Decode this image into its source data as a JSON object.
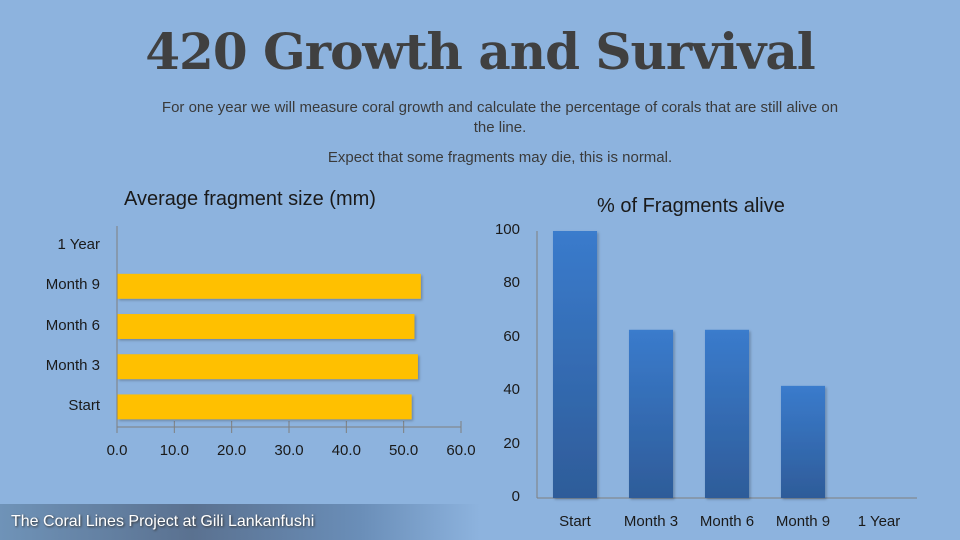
{
  "slide": {
    "title": "420 Growth and Survival",
    "subtitle_line1": "For one year we will measure coral growth and calculate the percentage of corals that are still alive on the line.",
    "subtitle_line2": "Expect that some fragments may die, this is normal.",
    "footer": "The Coral Lines Project at Gili Lankanfushi"
  },
  "chart_data": [
    {
      "type": "bar",
      "orientation": "horizontal",
      "title": "Average fragment size (mm)",
      "categories": [
        "Start",
        "Month 3",
        "Month 6",
        "Month 9",
        "1 Year"
      ],
      "values": [
        51.3,
        52.4,
        51.8,
        52.9,
        null
      ],
      "xlim": [
        0,
        60
      ],
      "xticks": [
        "0.0",
        "10.0",
        "20.0",
        "30.0",
        "40.0",
        "50.0",
        "60.0"
      ],
      "color": "#FFC000",
      "grid": false,
      "legend": "none"
    },
    {
      "type": "bar",
      "orientation": "vertical",
      "title": "% of Fragments alive",
      "categories": [
        "Start",
        "Month 3",
        "Month 6",
        "Month 9",
        "1 Year"
      ],
      "values": [
        100,
        63,
        63,
        42,
        null
      ],
      "ylim": [
        0,
        100
      ],
      "yticks": [
        "0",
        "20",
        "40",
        "60",
        "80",
        "100"
      ],
      "color": "#3A78C4",
      "grid": false,
      "legend": "none"
    }
  ]
}
